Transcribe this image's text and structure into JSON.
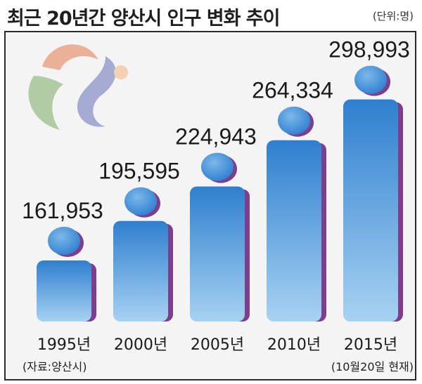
{
  "header": {
    "title": "최근 20년간 양산시 인구 변화 추이",
    "unit": "(단위:명)"
  },
  "footer": {
    "source": "(자료:양산시)",
    "note": "(10월20일 현재)"
  },
  "colors": {
    "bar_top": "#2f7fcf",
    "bar_bottom": "#a7d2f2",
    "shadow": "#7d3f8c",
    "logo_orange": "#e89a7a",
    "logo_green": "#9bbf8a",
    "logo_blue": "#8c93c8",
    "logo_peach": "#f4c69a"
  },
  "chart_data": {
    "type": "bar",
    "title": "최근 20년간 양산시 인구 변화 추이",
    "categories": [
      "1995년",
      "2000년",
      "2005년",
      "2010년",
      "2015년"
    ],
    "values": [
      161953,
      195595,
      224943,
      264334,
      298993
    ],
    "value_labels": [
      "161,953",
      "195,595",
      "224,943",
      "264,334",
      "298,993"
    ],
    "ylim": [
      0,
      300000
    ],
    "grid": false,
    "legend": "none"
  }
}
